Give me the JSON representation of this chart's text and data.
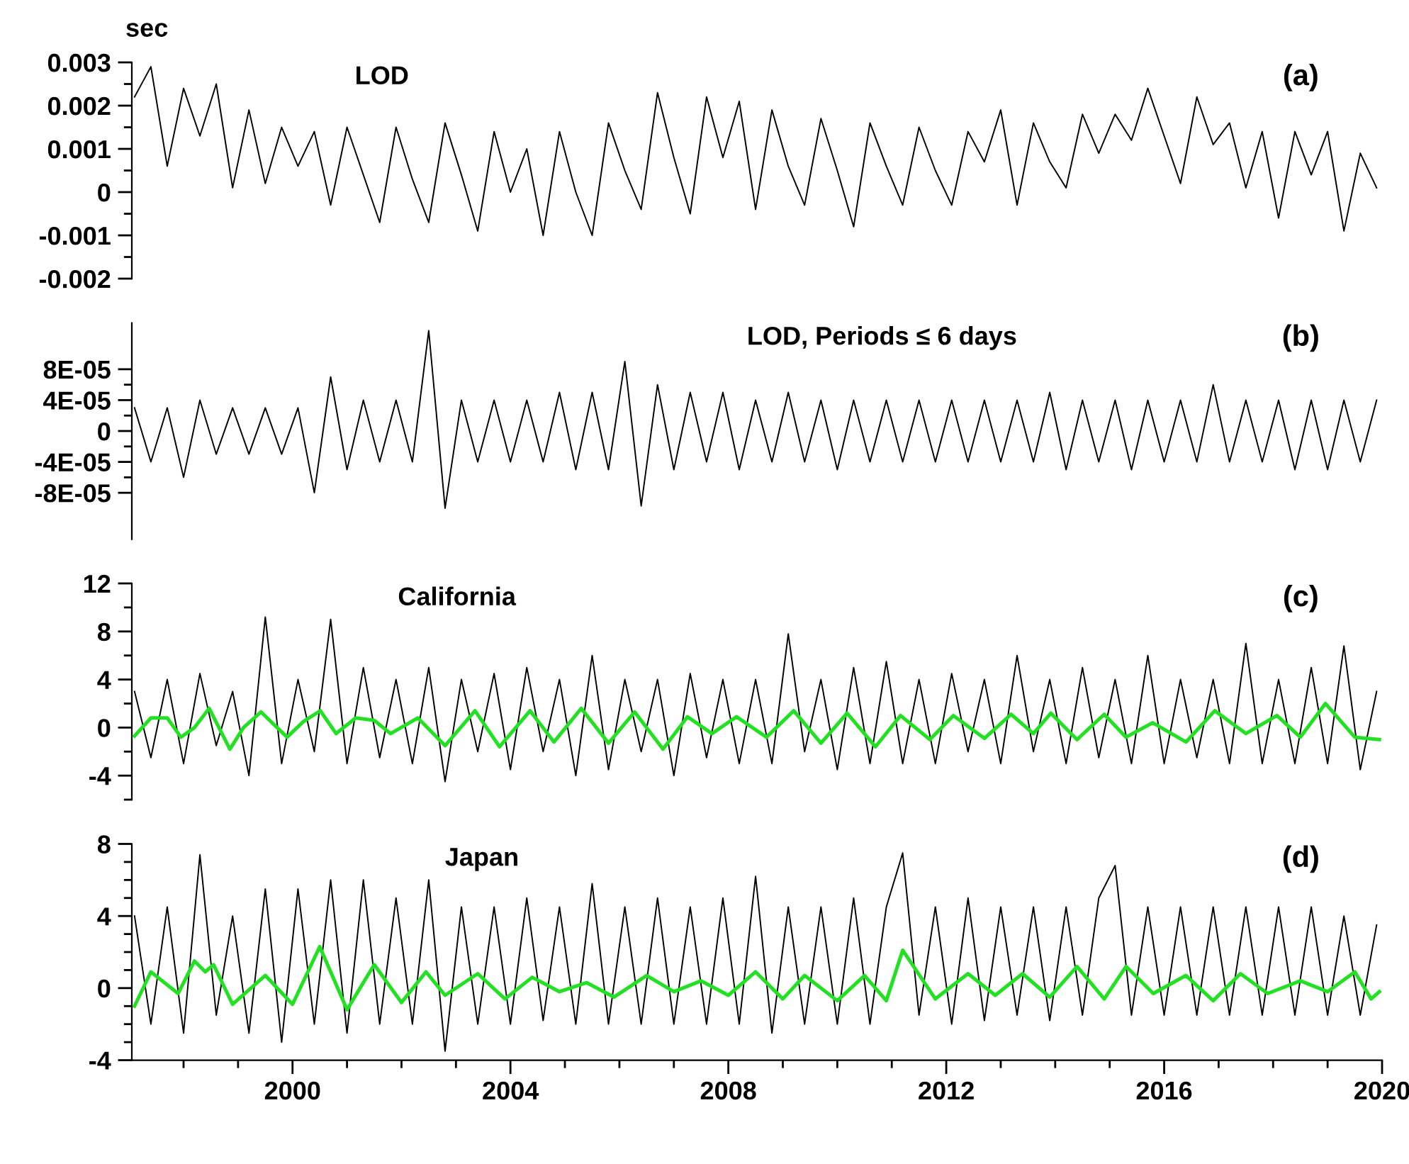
{
  "chart_data": [
    {
      "type": "line",
      "title": "LOD",
      "ylabel": "sec",
      "annotations": [
        "(a)"
      ],
      "tick_labels": "y",
      "xlim": [
        1997.05,
        2020
      ],
      "ylim": [
        -0.002,
        0.003
      ],
      "yticks": [
        0.003,
        {
          "value": 0.0025,
          "label": null
        },
        0.002,
        {
          "value": 0.0015,
          "label": null
        },
        0.001,
        {
          "value": 0.0005,
          "label": null
        },
        0,
        {
          "value": -0.0005,
          "label": null
        },
        -0.001,
        {
          "value": -0.0015,
          "label": null
        },
        -0.002
      ],
      "series": [
        {
          "color": "#000000",
          "x": [
            1997.1,
            1997.4,
            1997.7,
            1998.0,
            1998.3,
            1998.6,
            1998.9,
            1999.2,
            1999.5,
            1999.8,
            2000.1,
            2000.4,
            2000.7,
            2001.0,
            2001.3,
            2001.6,
            2001.9,
            2002.2,
            2002.5,
            2002.8,
            2003.1,
            2003.4,
            2003.7,
            2004.0,
            2004.3,
            2004.6,
            2004.9,
            2005.2,
            2005.5,
            2005.8,
            2006.1,
            2006.4,
            2006.7,
            2007.0,
            2007.3,
            2007.6,
            2007.9,
            2008.2,
            2008.5,
            2008.8,
            2009.1,
            2009.4,
            2009.7,
            2010.0,
            2010.3,
            2010.6,
            2010.9,
            2011.2,
            2011.5,
            2011.8,
            2012.1,
            2012.4,
            2012.7,
            2013.0,
            2013.3,
            2013.6,
            2013.9,
            2014.2,
            2014.5,
            2014.8,
            2015.1,
            2015.4,
            2015.7,
            2016.0,
            2016.3,
            2016.6,
            2016.9,
            2017.2,
            2017.5,
            2017.8,
            2018.1,
            2018.4,
            2018.7,
            2019.0,
            2019.3,
            2019.6,
            2019.9
          ],
          "values": [
            0.0022,
            0.0029,
            0.0006,
            0.0024,
            0.0013,
            0.0025,
            0.0001,
            0.0019,
            0.0002,
            0.0015,
            0.0006,
            0.0014,
            -0.0003,
            0.0015,
            0.0004,
            -0.0007,
            0.0015,
            0.0003,
            -0.0007,
            0.0016,
            0.0004,
            -0.0009,
            0.0014,
            0.0,
            0.001,
            -0.001,
            0.0014,
            0.0,
            -0.001,
            0.0016,
            0.0005,
            -0.0004,
            0.0023,
            0.0008,
            -0.0005,
            0.0022,
            0.0008,
            0.0021,
            -0.0004,
            0.0019,
            0.0006,
            -0.0003,
            0.0017,
            0.0005,
            -0.0008,
            0.0016,
            0.0006,
            -0.0003,
            0.0015,
            0.0005,
            -0.0003,
            0.0014,
            0.0007,
            0.0019,
            -0.0003,
            0.0016,
            0.0007,
            0.0001,
            0.0018,
            0.0009,
            0.0018,
            0.0012,
            0.0024,
            0.0013,
            0.0002,
            0.0022,
            0.0011,
            0.0016,
            0.0001,
            0.0014,
            -0.0006,
            0.0014,
            0.0004,
            0.0014,
            -0.0009,
            0.0009,
            0.0001
          ]
        }
      ]
    },
    {
      "type": "line",
      "title": "LOD, Periods ≤ 6 days",
      "annotations": [
        "(b)"
      ],
      "tick_labels": "y",
      "xlim": [
        1997.05,
        2020
      ],
      "ylim": [
        -0.00014,
        0.00014
      ],
      "yticks": [
        {
          "value": 8e-05,
          "label": "8E-05"
        },
        {
          "value": 6e-05,
          "label": null
        },
        {
          "value": 4e-05,
          "label": "4E-05"
        },
        {
          "value": 2e-05,
          "label": null
        },
        0,
        {
          "value": -2e-05,
          "label": null
        },
        {
          "value": -4e-05,
          "label": "-4E-05"
        },
        {
          "value": -6e-05,
          "label": null
        },
        {
          "value": -8e-05,
          "label": "-8E-05"
        }
      ],
      "series": [
        {
          "color": "#000000",
          "x": [
            1997.1,
            1997.4,
            1997.7,
            1998.0,
            1998.3,
            1998.6,
            1998.9,
            1999.2,
            1999.5,
            1999.8,
            2000.1,
            2000.4,
            2000.7,
            2001.0,
            2001.3,
            2001.6,
            2001.9,
            2002.2,
            2002.5,
            2002.8,
            2003.1,
            2003.4,
            2003.7,
            2004.0,
            2004.3,
            2004.6,
            2004.9,
            2005.2,
            2005.5,
            2005.8,
            2006.1,
            2006.4,
            2006.7,
            2007.0,
            2007.3,
            2007.6,
            2007.9,
            2008.2,
            2008.5,
            2008.8,
            2009.1,
            2009.4,
            2009.7,
            2010.0,
            2010.3,
            2010.6,
            2010.9,
            2011.2,
            2011.5,
            2011.8,
            2012.1,
            2012.4,
            2012.7,
            2013.0,
            2013.3,
            2013.6,
            2013.9,
            2014.2,
            2014.5,
            2014.8,
            2015.1,
            2015.4,
            2015.7,
            2016.0,
            2016.3,
            2016.6,
            2016.9,
            2017.2,
            2017.5,
            2017.8,
            2018.1,
            2018.4,
            2018.7,
            2019.0,
            2019.3,
            2019.6,
            2019.9
          ],
          "values": [
            3e-05,
            -4e-05,
            3e-05,
            -6e-05,
            4e-05,
            -3e-05,
            3e-05,
            -3e-05,
            3e-05,
            -3e-05,
            3e-05,
            -8e-05,
            7e-05,
            -5e-05,
            4e-05,
            -4e-05,
            4e-05,
            -4e-05,
            0.00013,
            -0.0001,
            4e-05,
            -4e-05,
            4e-05,
            -4e-05,
            4e-05,
            -4e-05,
            5e-05,
            -5e-05,
            5e-05,
            -5e-05,
            9e-05,
            -9.7e-05,
            6e-05,
            -5e-05,
            5e-05,
            -4e-05,
            5e-05,
            -5e-05,
            4e-05,
            -4e-05,
            5e-05,
            -4e-05,
            4e-05,
            -5e-05,
            4e-05,
            -4e-05,
            4e-05,
            -4e-05,
            4e-05,
            -4e-05,
            4e-05,
            -4e-05,
            4e-05,
            -4e-05,
            4e-05,
            -4e-05,
            5e-05,
            -5e-05,
            4e-05,
            -4e-05,
            4e-05,
            -5e-05,
            4e-05,
            -4e-05,
            4e-05,
            -4e-05,
            6e-05,
            -4e-05,
            4e-05,
            -4e-05,
            4e-05,
            -5e-05,
            4e-05,
            -5e-05,
            4e-05,
            -4e-05,
            4e-05
          ]
        }
      ]
    },
    {
      "type": "line",
      "title": "California",
      "annotations": [
        "(c)"
      ],
      "tick_labels": "y",
      "xlim": [
        1997.05,
        2020
      ],
      "ylim": [
        -6,
        12
      ],
      "yticks": [
        12,
        {
          "value": 10,
          "label": null
        },
        8,
        {
          "value": 6,
          "label": null
        },
        4,
        {
          "value": 2,
          "label": null
        },
        0,
        {
          "value": -2,
          "label": null
        },
        -4,
        {
          "value": -6,
          "label": null
        }
      ],
      "series": [
        {
          "color": "#000000",
          "x": [
            1997.1,
            1997.4,
            1997.7,
            1998.0,
            1998.3,
            1998.6,
            1998.9,
            1999.2,
            1999.5,
            1999.8,
            2000.1,
            2000.4,
            2000.7,
            2001.0,
            2001.3,
            2001.6,
            2001.9,
            2002.2,
            2002.5,
            2002.8,
            2003.1,
            2003.4,
            2003.7,
            2004.0,
            2004.3,
            2004.6,
            2004.9,
            2005.2,
            2005.5,
            2005.8,
            2006.1,
            2006.4,
            2006.7,
            2007.0,
            2007.3,
            2007.6,
            2007.9,
            2008.2,
            2008.5,
            2008.8,
            2009.1,
            2009.4,
            2009.7,
            2010.0,
            2010.3,
            2010.6,
            2010.9,
            2011.2,
            2011.5,
            2011.8,
            2012.1,
            2012.4,
            2012.7,
            2013.0,
            2013.3,
            2013.6,
            2013.9,
            2014.2,
            2014.5,
            2014.8,
            2015.1,
            2015.4,
            2015.7,
            2016.0,
            2016.3,
            2016.6,
            2016.9,
            2017.2,
            2017.5,
            2017.8,
            2018.1,
            2018.4,
            2018.7,
            2019.0,
            2019.3,
            2019.6,
            2019.9
          ],
          "values": [
            3,
            -2.5,
            4,
            -3,
            4.5,
            -1.5,
            3,
            -4,
            9.2,
            -3,
            4,
            -2,
            9.0,
            -3,
            5,
            -2.5,
            4,
            -3,
            5,
            -4.5,
            4,
            -2,
            4.5,
            -3.5,
            5,
            -2,
            4,
            -4,
            6,
            -3.5,
            4,
            -2,
            4,
            -4,
            4.5,
            -2.5,
            4,
            -3,
            4,
            -3,
            7.8,
            -2,
            4,
            -3.5,
            5,
            -3,
            5.5,
            -3,
            4,
            -3,
            4.5,
            -2,
            4,
            -3,
            6,
            -2,
            4,
            -3,
            5,
            -2.5,
            4,
            -3,
            6,
            -3,
            4,
            -2.5,
            4,
            -3,
            7,
            -3,
            4,
            -3,
            5,
            -3,
            6.8,
            -3.5,
            3
          ]
        },
        {
          "color": "#22e022",
          "x": [
            1997.1,
            1997.4,
            1997.7,
            1997.95,
            1998.2,
            1998.47,
            1998.85,
            1999.1,
            1999.42,
            1999.9,
            2000.2,
            2000.51,
            2000.8,
            2001.16,
            2001.5,
            2001.8,
            2002.3,
            2002.8,
            2003.35,
            2003.8,
            2004.36,
            2004.8,
            2005.3,
            2005.8,
            2006.28,
            2006.8,
            2007.25,
            2007.7,
            2008.15,
            2008.7,
            2009.2,
            2009.7,
            2010.18,
            2010.7,
            2011.16,
            2011.7,
            2012.13,
            2012.7,
            2013.19,
            2013.6,
            2013.92,
            2014.4,
            2014.9,
            2015.3,
            2015.79,
            2016.4,
            2016.93,
            2017.5,
            2018.07,
            2018.5,
            2018.96,
            2019.5,
            2019.95
          ],
          "values": [
            -0.7,
            0.8,
            0.8,
            -0.8,
            0,
            1.6,
            -1.8,
            0,
            1.3,
            -0.8,
            0.5,
            1.4,
            -0.5,
            0.8,
            0.6,
            -0.5,
            0.8,
            -1.5,
            1.4,
            -1.6,
            1.4,
            -1.2,
            1.6,
            -1.3,
            1.3,
            -1.8,
            0.9,
            -0.5,
            0.9,
            -0.8,
            1.4,
            -1.3,
            1.2,
            -1.6,
            1.0,
            -1.0,
            1.0,
            -0.9,
            1.1,
            -0.5,
            1.2,
            -1.0,
            1.1,
            -0.8,
            0.4,
            -1.2,
            1.4,
            -0.5,
            1.0,
            -0.8,
            2.0,
            -0.8,
            -1.0
          ]
        }
      ]
    },
    {
      "type": "line",
      "title": "Japan",
      "annotations": [
        "(d)"
      ],
      "xlim": [
        1997.05,
        2020
      ],
      "ylim": [
        -4,
        8
      ],
      "xticks": [
        {
          "value": 1998,
          "label": null
        },
        {
          "value": 1999,
          "label": null
        },
        2000,
        {
          "value": 2001,
          "label": null
        },
        {
          "value": 2002,
          "label": null
        },
        {
          "value": 2003,
          "label": null
        },
        2004,
        {
          "value": 2005,
          "label": null
        },
        {
          "value": 2006,
          "label": null
        },
        {
          "value": 2007,
          "label": null
        },
        2008,
        {
          "value": 2009,
          "label": null
        },
        {
          "value": 2010,
          "label": null
        },
        {
          "value": 2011,
          "label": null
        },
        2012,
        {
          "value": 2013,
          "label": null
        },
        {
          "value": 2014,
          "label": null
        },
        {
          "value": 2015,
          "label": null
        },
        2016,
        {
          "value": 2017,
          "label": null
        },
        {
          "value": 2018,
          "label": null
        },
        {
          "value": 2019,
          "label": null
        },
        2020
      ],
      "yticks": [
        8,
        {
          "value": 7,
          "label": null
        },
        {
          "value": 6,
          "label": null
        },
        {
          "value": 5,
          "label": null
        },
        4,
        {
          "value": 3,
          "label": null
        },
        {
          "value": 2,
          "label": null
        },
        {
          "value": 1,
          "label": null
        },
        0,
        {
          "value": -1,
          "label": null
        },
        {
          "value": -2,
          "label": null
        },
        {
          "value": -3,
          "label": null
        },
        -4
      ],
      "series": [
        {
          "color": "#000000",
          "x": [
            1997.1,
            1997.4,
            1997.7,
            1998.0,
            1998.3,
            1998.6,
            1998.9,
            1999.2,
            1999.5,
            1999.8,
            2000.1,
            2000.4,
            2000.7,
            2001.0,
            2001.3,
            2001.6,
            2001.9,
            2002.2,
            2002.5,
            2002.8,
            2003.1,
            2003.4,
            2003.7,
            2004.0,
            2004.3,
            2004.6,
            2004.9,
            2005.2,
            2005.5,
            2005.8,
            2006.1,
            2006.4,
            2006.7,
            2007.0,
            2007.3,
            2007.6,
            2007.9,
            2008.2,
            2008.5,
            2008.8,
            2009.1,
            2009.4,
            2009.7,
            2010.0,
            2010.3,
            2010.6,
            2010.9,
            2011.2,
            2011.5,
            2011.8,
            2012.1,
            2012.4,
            2012.7,
            2013.0,
            2013.3,
            2013.6,
            2013.9,
            2014.2,
            2014.5,
            2014.8,
            2015.1,
            2015.4,
            2015.7,
            2016.0,
            2016.3,
            2016.6,
            2016.9,
            2017.2,
            2017.5,
            2017.8,
            2018.1,
            2018.4,
            2018.7,
            2019.0,
            2019.3,
            2019.6,
            2019.9
          ],
          "values": [
            4,
            -2,
            4.5,
            -2.5,
            7.4,
            -1.5,
            4,
            -2.5,
            5.5,
            -3,
            5.5,
            -2,
            6,
            -2.5,
            6,
            -2,
            5,
            -2,
            6,
            -3.5,
            4.5,
            -2,
            4.5,
            -2,
            5,
            -1.8,
            4.5,
            -2,
            5.8,
            -2,
            4.5,
            -2,
            5,
            -2,
            4.5,
            -2,
            5,
            -2,
            6.2,
            -2.5,
            4.5,
            -2,
            4.5,
            -2,
            5,
            -2,
            4.5,
            7.5,
            -1.5,
            4.5,
            -2,
            5,
            -1.8,
            4.5,
            -1.5,
            4.5,
            -1.8,
            4.5,
            -1.5,
            5,
            6.8,
            -1.5,
            4.5,
            -1.5,
            4.5,
            -1.5,
            4.5,
            -1.5,
            4.5,
            -1.5,
            4.5,
            -1.5,
            4.5,
            -1.5,
            4,
            -1.5,
            3.5
          ]
        },
        {
          "color": "#22e022",
          "x": [
            1997.1,
            1997.4,
            1997.9,
            1998.2,
            1998.4,
            1998.55,
            1998.9,
            1999.5,
            2000.0,
            2000.5,
            2001.0,
            2001.5,
            2002.0,
            2002.45,
            2002.8,
            2003.4,
            2003.9,
            2004.4,
            2004.9,
            2005.4,
            2005.9,
            2006.5,
            2007.0,
            2007.5,
            2008.0,
            2008.5,
            2009.0,
            2009.4,
            2010.0,
            2010.5,
            2010.9,
            2011.2,
            2011.8,
            2012.4,
            2012.9,
            2013.4,
            2013.9,
            2014.4,
            2014.9,
            2015.3,
            2015.8,
            2016.4,
            2016.9,
            2017.4,
            2017.9,
            2018.5,
            2019.0,
            2019.5,
            2019.8,
            2019.95
          ],
          "values": [
            -1.0,
            0.9,
            -0.3,
            1.5,
            0.9,
            1.3,
            -0.9,
            0.7,
            -0.9,
            2.3,
            -1.2,
            1.3,
            -0.8,
            0.9,
            -0.4,
            0.8,
            -0.6,
            0.6,
            -0.2,
            0.3,
            -0.5,
            0.7,
            -0.2,
            0.4,
            -0.4,
            0.9,
            -0.6,
            0.7,
            -0.7,
            0.7,
            -0.7,
            2.1,
            -0.6,
            0.8,
            -0.4,
            0.8,
            -0.5,
            1.2,
            -0.6,
            1.2,
            -0.3,
            0.7,
            -0.7,
            0.8,
            -0.3,
            0.4,
            -0.2,
            0.9,
            -0.6,
            -0.2
          ]
        }
      ]
    }
  ]
}
